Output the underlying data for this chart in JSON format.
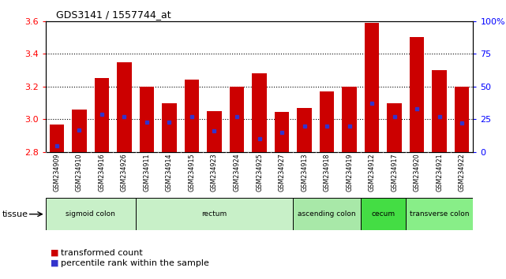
{
  "title": "GDS3141 / 1557744_at",
  "samples": [
    "GSM234909",
    "GSM234910",
    "GSM234916",
    "GSM234926",
    "GSM234911",
    "GSM234914",
    "GSM234915",
    "GSM234923",
    "GSM234924",
    "GSM234925",
    "GSM234927",
    "GSM234913",
    "GSM234918",
    "GSM234919",
    "GSM234912",
    "GSM234917",
    "GSM234920",
    "GSM234921",
    "GSM234922"
  ],
  "bar_heights": [
    2.97,
    3.06,
    3.25,
    3.35,
    3.2,
    3.1,
    3.24,
    3.05,
    3.2,
    3.28,
    3.045,
    3.07,
    3.17,
    3.2,
    3.59,
    3.1,
    3.5,
    3.3,
    3.2
  ],
  "percentile_ranks": [
    5,
    17,
    29,
    27,
    23,
    23,
    27,
    16,
    27,
    10,
    15,
    20,
    20,
    20,
    37,
    27,
    33,
    27,
    22
  ],
  "ymin": 2.8,
  "ymax": 3.6,
  "y_ticks_left": [
    2.8,
    3.0,
    3.2,
    3.4,
    3.6
  ],
  "y_ticks_right": [
    0,
    25,
    50,
    75,
    100
  ],
  "dotted_lines": [
    3.0,
    3.2,
    3.4
  ],
  "bar_color": "#cc0000",
  "dot_color": "#3333cc",
  "tissue_groups": [
    {
      "label": "sigmoid colon",
      "start": 0,
      "end": 4,
      "color": "#c8f0c8"
    },
    {
      "label": "rectum",
      "start": 4,
      "end": 11,
      "color": "#c8f0c8"
    },
    {
      "label": "ascending colon",
      "start": 11,
      "end": 14,
      "color": "#a8e8a8"
    },
    {
      "label": "cecum",
      "start": 14,
      "end": 16,
      "color": "#44dd44"
    },
    {
      "label": "transverse colon",
      "start": 16,
      "end": 19,
      "color": "#88ee88"
    }
  ],
  "sample_bg": "#cccccc",
  "plot_bg": "#ffffff",
  "legend_items": [
    {
      "label": "transformed count",
      "color": "#cc0000"
    },
    {
      "label": "percentile rank within the sample",
      "color": "#3333cc"
    }
  ]
}
